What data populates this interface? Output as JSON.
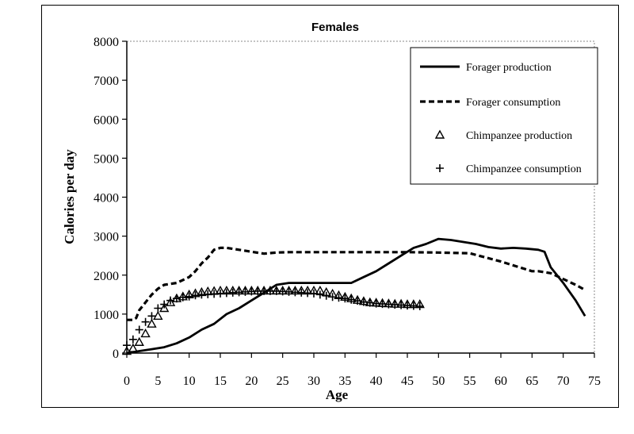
{
  "chart_data": {
    "type": "line",
    "title": "Females",
    "xlabel": "Age",
    "ylabel": "Calories per day",
    "xlim": [
      0,
      75
    ],
    "ylim": [
      0,
      8000
    ],
    "xticks": [
      0,
      5,
      10,
      15,
      20,
      25,
      30,
      35,
      40,
      45,
      50,
      55,
      60,
      65,
      70,
      75
    ],
    "yticks": [
      0,
      1000,
      2000,
      3000,
      4000,
      5000,
      6000,
      7000,
      8000
    ],
    "legend_position": "top-right",
    "series": [
      {
        "name": "Forager production",
        "style": "solid",
        "x": [
          0,
          2,
          4,
          6,
          8,
          10,
          12,
          14,
          16,
          18,
          20,
          22,
          24,
          26,
          28,
          30,
          32,
          34,
          36,
          38,
          40,
          42,
          44,
          46,
          48,
          50,
          52,
          54,
          56,
          58,
          60,
          62,
          64,
          66,
          67,
          68,
          70,
          72,
          73.5
        ],
        "y": [
          0,
          50,
          100,
          150,
          250,
          400,
          600,
          750,
          1000,
          1150,
          1350,
          1550,
          1750,
          1800,
          1800,
          1800,
          1800,
          1800,
          1800,
          1950,
          2100,
          2300,
          2500,
          2700,
          2800,
          2930,
          2900,
          2850,
          2800,
          2720,
          2680,
          2700,
          2680,
          2650,
          2600,
          2200,
          1800,
          1350,
          950
        ]
      },
      {
        "name": "Forager consumption",
        "style": "dashed",
        "x": [
          0,
          1,
          1.5,
          2,
          3,
          4,
          5,
          6,
          8,
          10,
          11,
          12,
          13,
          14,
          15,
          16,
          18,
          20,
          22,
          24,
          26,
          30,
          35,
          40,
          45,
          50,
          55,
          60,
          65,
          66,
          68,
          70,
          72,
          73.5
        ],
        "y": [
          850,
          850,
          900,
          1100,
          1300,
          1500,
          1650,
          1750,
          1800,
          1950,
          2100,
          2300,
          2450,
          2650,
          2700,
          2700,
          2650,
          2600,
          2550,
          2580,
          2590,
          2590,
          2590,
          2590,
          2590,
          2580,
          2560,
          2350,
          2100,
          2100,
          2050,
          1900,
          1750,
          1620
        ]
      },
      {
        "name": "Chimpanzee production",
        "style": "triangle",
        "x": [
          0,
          1,
          2,
          3,
          4,
          5,
          6,
          7,
          8,
          9,
          10,
          11,
          12,
          13,
          14,
          15,
          16,
          17,
          18,
          19,
          20,
          21,
          22,
          23,
          24,
          25,
          26,
          27,
          28,
          29,
          30,
          31,
          32,
          33,
          34,
          35,
          36,
          37,
          38,
          39,
          40,
          41,
          42,
          43,
          44,
          45,
          46,
          47
        ],
        "y": [
          50,
          120,
          280,
          500,
          750,
          950,
          1150,
          1300,
          1400,
          1450,
          1500,
          1530,
          1560,
          1580,
          1590,
          1600,
          1600,
          1600,
          1600,
          1600,
          1600,
          1600,
          1600,
          1600,
          1600,
          1600,
          1600,
          1600,
          1600,
          1600,
          1600,
          1600,
          1560,
          1520,
          1480,
          1440,
          1400,
          1360,
          1330,
          1300,
          1290,
          1280,
          1270,
          1260,
          1260,
          1250,
          1250,
          1250
        ]
      },
      {
        "name": "Chimpanzee consumption",
        "style": "plus",
        "x": [
          0,
          1,
          2,
          3,
          4,
          5,
          6,
          7,
          8,
          9,
          10,
          11,
          12,
          13,
          14,
          15,
          16,
          17,
          18,
          19,
          20,
          21,
          22,
          23,
          24,
          25,
          26,
          27,
          28,
          29,
          30,
          31,
          32,
          33,
          34,
          35,
          36,
          37,
          38,
          39,
          40,
          41,
          42,
          43,
          44,
          45,
          46,
          47
        ],
        "y": [
          200,
          350,
          600,
          800,
          950,
          1150,
          1250,
          1350,
          1400,
          1430,
          1450,
          1480,
          1500,
          1510,
          1520,
          1530,
          1540,
          1550,
          1560,
          1570,
          1580,
          1590,
          1590,
          1590,
          1590,
          1580,
          1570,
          1560,
          1550,
          1540,
          1530,
          1500,
          1470,
          1440,
          1420,
          1400,
          1370,
          1340,
          1310,
          1290,
          1270,
          1260,
          1250,
          1240,
          1230,
          1220,
          1210,
          1200
        ]
      }
    ]
  }
}
